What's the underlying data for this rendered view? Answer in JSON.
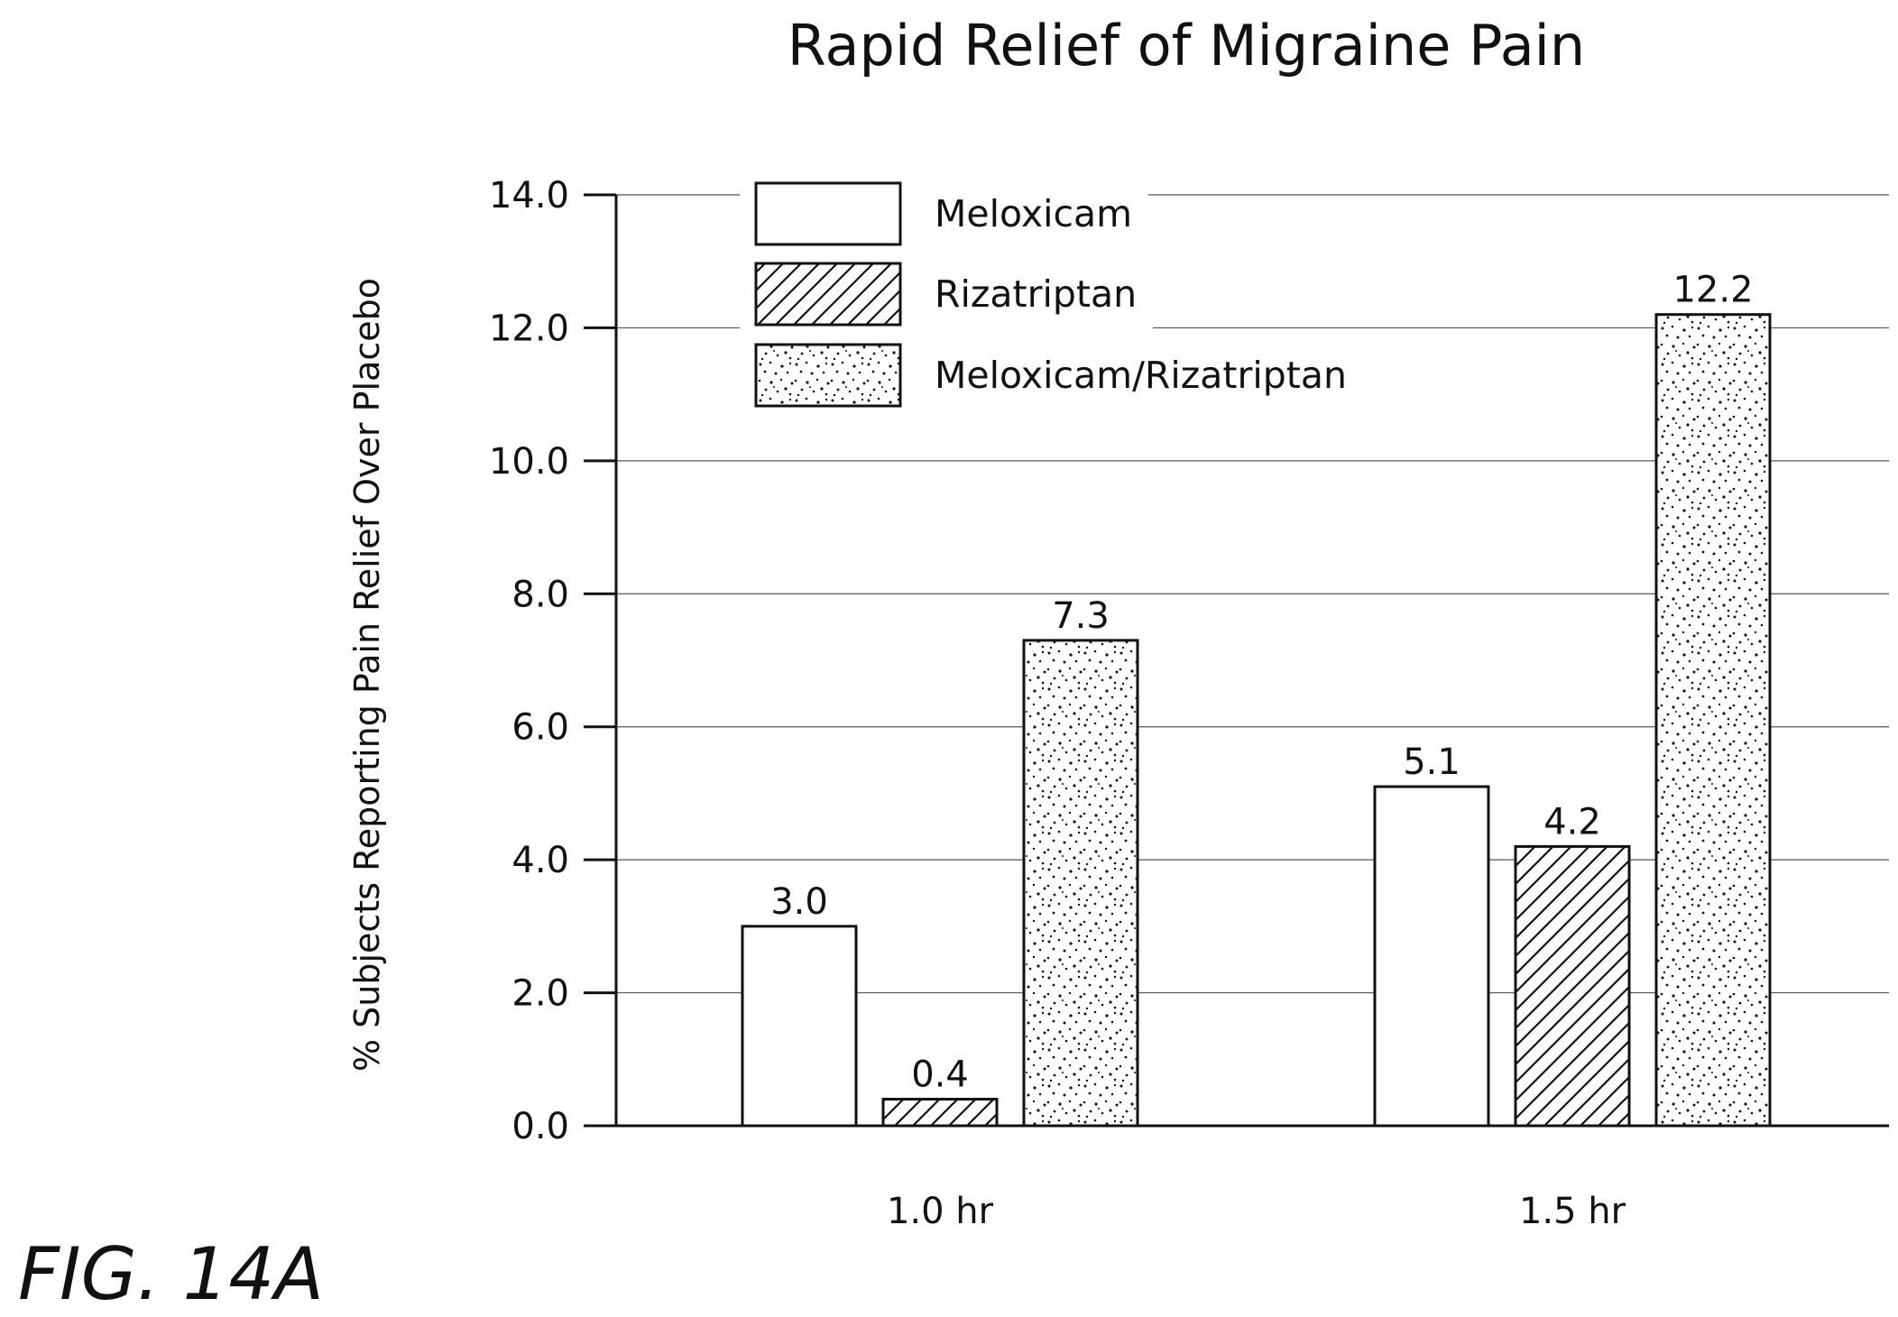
{
  "figure_label": "FIG. 14A",
  "chart_data": {
    "type": "bar",
    "title": "Rapid Relief of Migraine Pain",
    "xlabel": "",
    "ylabel": "% Subjects Reporting Pain Relief Over Placebo",
    "categories": [
      "1.0 hr",
      "1.5 hr"
    ],
    "series": [
      {
        "name": "Meloxicam",
        "values": [
          3.0,
          5.1
        ],
        "labels": [
          "3.0",
          "5.1"
        ],
        "pattern": "solid-white"
      },
      {
        "name": "Rizatriptan",
        "values": [
          0.4,
          4.2
        ],
        "labels": [
          "0.4",
          "4.2"
        ],
        "pattern": "diagonal-hatch"
      },
      {
        "name": "Meloxicam/Rizatriptan",
        "values": [
          7.3,
          12.2
        ],
        "labels": [
          "7.3",
          "12.2"
        ],
        "pattern": "stipple"
      }
    ],
    "ylim": [
      0,
      14
    ],
    "yticks": [
      "0.0",
      "2.0",
      "4.0",
      "6.0",
      "8.0",
      "10.0",
      "12.0",
      "14.0"
    ],
    "grid": true,
    "legend_position": "top-left"
  }
}
